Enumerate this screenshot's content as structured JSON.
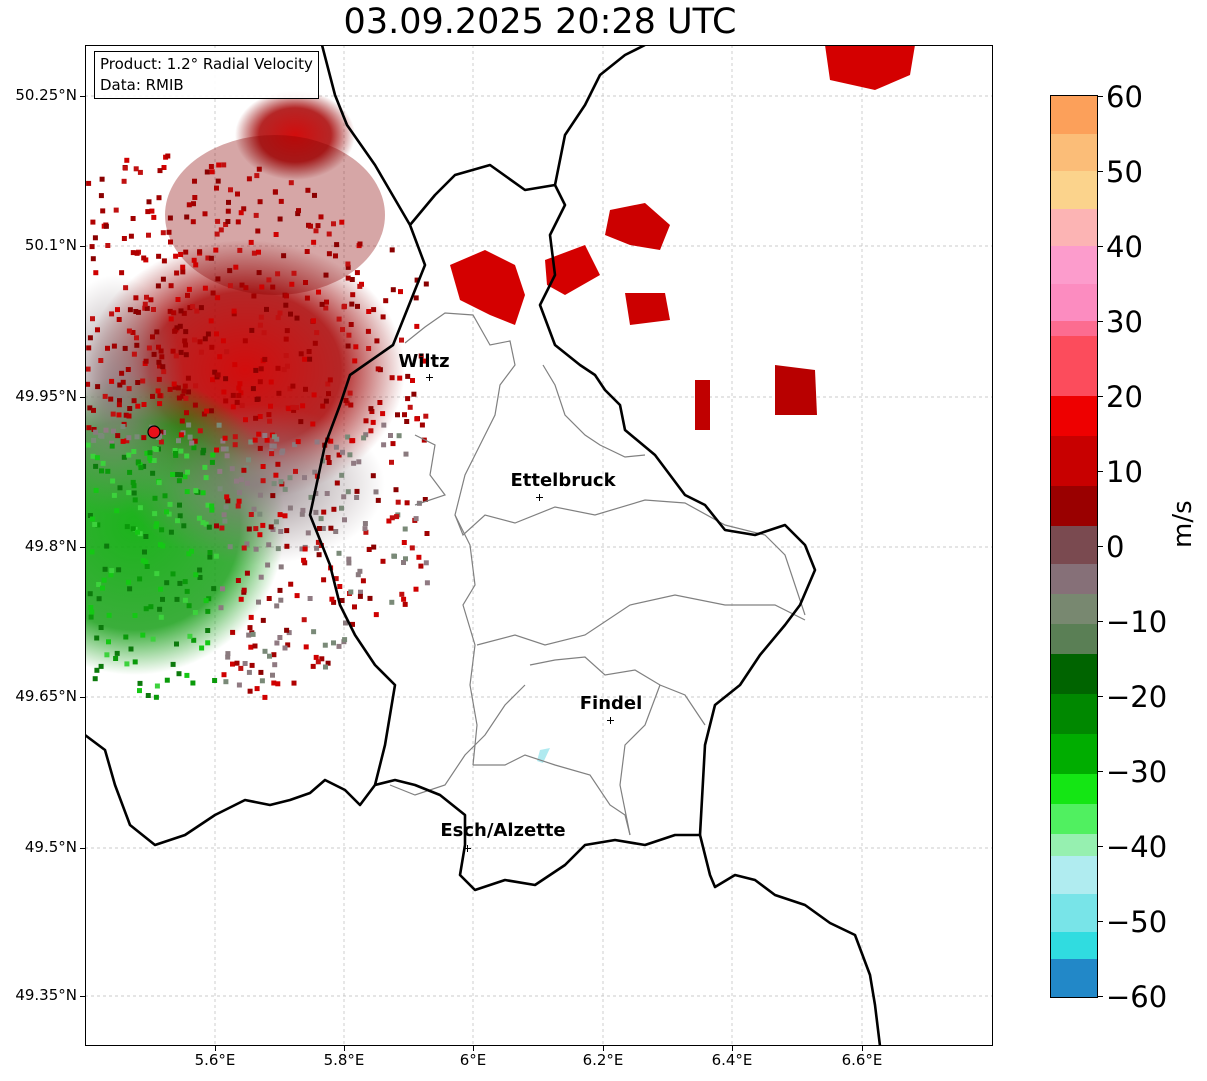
{
  "title": "03.09.2025 20:28 UTC",
  "info": {
    "product": "Product: 1.2° Radial Velocity",
    "data": "Data: RMIB"
  },
  "lat_labels": [
    "50.25°N",
    "50.1°N",
    "49.95°N",
    "49.8°N",
    "49.65°N",
    "49.5°N",
    "49.35°N"
  ],
  "lon_labels": [
    "5.6°E",
    "5.8°E",
    "6°E",
    "6.2°E",
    "6.4°E",
    "6.6°E"
  ],
  "cities": [
    {
      "name": "Wiltz",
      "lat": 49.966,
      "lon": 5.932
    },
    {
      "name": "Ettelbruck",
      "lat": 49.847,
      "lon": 6.104
    },
    {
      "name": "Findel",
      "lat": 49.626,
      "lon": 6.211
    },
    {
      "name": "Esch/Alzette",
      "lat": 49.497,
      "lon": 5.984
    }
  ],
  "radar_site": {
    "lat": 49.914,
    "lon": 5.505,
    "color": "#e8101a"
  },
  "colorbar": {
    "unit": "m/s",
    "min": -60,
    "max": 60,
    "tick_labels": [
      "60",
      "50",
      "40",
      "30",
      "20",
      "10",
      "0",
      "−10",
      "−20",
      "−30",
      "−40",
      "−50",
      "−60"
    ]
  },
  "colors": {
    "approaching": "#0aa00a",
    "receding": "#c80000",
    "near_zero": "#8a7a7e",
    "border": "#000000",
    "admin": "#808080"
  }
}
